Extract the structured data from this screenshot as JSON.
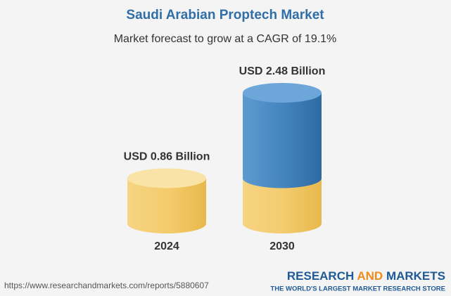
{
  "chart_data": {
    "type": "cylinder",
    "title": "Saudi Arabian Proptech Market",
    "subtitle": "Market forecast to grow at a CAGR of 19.1%",
    "categories": [
      "2024",
      "2030"
    ],
    "values": [
      0.86,
      2.48
    ],
    "value_labels": [
      "USD 0.86 Billion",
      "USD 2.48 Billion"
    ],
    "color": "#f2c761",
    "growth_color": "#3d7db6"
  },
  "footer": {
    "source": "https://www.researchandmarkets.com/reports/5880607",
    "logo": [
      "RESEARCH",
      "AND",
      "MARKETS"
    ],
    "tagline": "THE WORLD'S LARGEST MARKET RESEARCH STORE"
  }
}
